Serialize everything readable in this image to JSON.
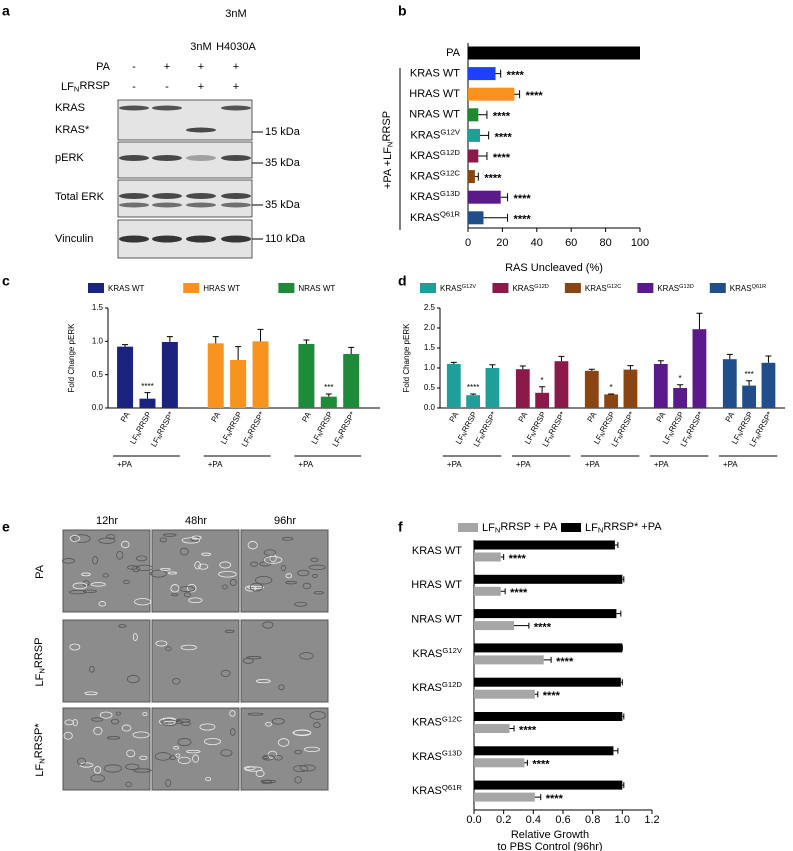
{
  "panel_labels": [
    "a",
    "b",
    "c",
    "d",
    "e",
    "f"
  ],
  "blot": {
    "lanes": [
      [
        "-",
        "-"
      ],
      [
        "+",
        "-"
      ],
      [
        "3nM",
        "+",
        "+"
      ],
      [
        "3nM",
        "H4030A",
        "+",
        "+"
      ]
    ],
    "row_labels": [
      "PA",
      "LFNRRSP"
    ],
    "lane_headers": [
      null,
      null,
      [
        "3nM"
      ],
      [
        "3nM",
        "H4030A"
      ]
    ],
    "treatments": [
      [
        "-",
        "+",
        "+",
        "+"
      ],
      [
        "-",
        "-",
        "+",
        "+"
      ]
    ],
    "proteins": [
      "KRAS",
      "KRAS*",
      "pERK",
      "Total ERK",
      "Vinculin"
    ],
    "markers": [
      "15 kDa",
      "35 kDa",
      "35 kDa",
      "110 kDa"
    ]
  },
  "micrographs": {
    "columns": [
      "12hr",
      "48hr",
      "96hr"
    ],
    "rows": [
      "PA",
      "LFNRRSP",
      "LFNRRSP*"
    ]
  },
  "chart_data": [
    {
      "type": "bar",
      "orientation": "horizontal",
      "group_label": "+PA +LFNRRSP",
      "categories": [
        "PA",
        "KRAS WT",
        "HRAS WT",
        "NRAS WT",
        "KRASG12V",
        "KRASG12D",
        "KRASG12C",
        "KRASG13D",
        "KRASQ61R"
      ],
      "values": [
        100,
        16,
        27,
        6,
        7,
        6,
        4,
        19,
        9
      ],
      "errors": [
        0,
        3,
        3,
        5,
        5,
        5,
        2,
        4,
        14
      ],
      "annotations": [
        null,
        "****",
        "****",
        "****",
        "****",
        "****",
        "****",
        "****",
        "****"
      ],
      "colors": [
        "#000000",
        "#1f3fff",
        "#f7931e",
        "#1a8a2a",
        "#1f9e9a",
        "#8b1a4a",
        "#8b4513",
        "#5a1a8a",
        "#1f4e8a"
      ],
      "xlim": [
        0,
        100
      ],
      "xticks": [
        0,
        20,
        40,
        60,
        80,
        100
      ],
      "xlabel": "RAS Uncleaved (%)"
    },
    {
      "type": "bar",
      "orientation": "vertical",
      "ylabel": "Fold Change pERK",
      "group_label": "+PA",
      "categories": [
        "PA",
        "LFNRRSP",
        "LFNRRSP*"
      ],
      "series": [
        {
          "name": "KRAS WT",
          "color": "#1a237e",
          "values": [
            0.92,
            0.14,
            0.99
          ],
          "errors": [
            0.03,
            0.09,
            0.08
          ],
          "annotations": [
            null,
            "****",
            null
          ]
        },
        {
          "name": "HRAS WT",
          "color": "#f7931e",
          "values": [
            0.97,
            0.72,
            1.0
          ],
          "errors": [
            0.1,
            0.2,
            0.18
          ],
          "annotations": [
            null,
            null,
            null
          ]
        },
        {
          "name": "NRAS WT",
          "color": "#1e8b3a",
          "values": [
            0.96,
            0.17,
            0.81
          ],
          "errors": [
            0.06,
            0.04,
            0.1
          ],
          "annotations": [
            null,
            "***",
            null
          ]
        }
      ],
      "ylim": [
        0,
        1.5
      ],
      "yticks": [
        {
          "value": 0,
          "label": "0.0"
        },
        0.5,
        {
          "value": 1,
          "label": "1.0"
        },
        1.5
      ]
    },
    {
      "type": "bar",
      "orientation": "vertical",
      "ylabel": "Fold Change pERK",
      "group_label": "+PA",
      "categories": [
        "PA",
        "LFNRRSP",
        "LFNRRSP*"
      ],
      "series": [
        {
          "name": "KRASG12V",
          "color": "#1f9e9a",
          "values": [
            1.1,
            0.32,
            1.0
          ],
          "errors": [
            0.04,
            0.03,
            0.08
          ],
          "annotations": [
            null,
            "****",
            null
          ]
        },
        {
          "name": "KRASG12D",
          "color": "#8b1a4a",
          "values": [
            0.97,
            0.38,
            1.17
          ],
          "errors": [
            0.08,
            0.15,
            0.12
          ],
          "annotations": [
            null,
            "*",
            null
          ]
        },
        {
          "name": "KRASG12C",
          "color": "#8b4513",
          "values": [
            0.93,
            0.34,
            0.96
          ],
          "errors": [
            0.04,
            0.01,
            0.1
          ],
          "annotations": [
            null,
            "*",
            null
          ]
        },
        {
          "name": "KRASG13D",
          "color": "#5a1a8a",
          "values": [
            1.1,
            0.5,
            1.97
          ],
          "errors": [
            0.08,
            0.08,
            0.4
          ],
          "annotations": [
            null,
            "*",
            null
          ]
        },
        {
          "name": "KRASQ61R",
          "color": "#1f4e8a",
          "values": [
            1.22,
            0.56,
            1.13
          ],
          "errors": [
            0.12,
            0.12,
            0.17
          ],
          "annotations": [
            null,
            "***",
            null
          ]
        }
      ],
      "ylim": [
        0,
        2.5
      ],
      "yticks": [
        {
          "value": 0,
          "label": "0.0"
        },
        0.5,
        {
          "value": 1,
          "label": "1.0"
        },
        1.5,
        {
          "value": 2,
          "label": "2.0"
        },
        2.5
      ]
    },
    {
      "type": "bar",
      "orientation": "horizontal",
      "categories": [
        "KRAS WT",
        "HRAS WT",
        "NRAS WT",
        "KRASG12V",
        "KRASG12D",
        "KRASG12C",
        "KRASG13D",
        "KRASQ61R"
      ],
      "series": [
        {
          "name": "LFNRRSP + PA",
          "color": "#a6a6a6",
          "values": [
            0.18,
            0.18,
            0.27,
            0.47,
            0.41,
            0.24,
            0.34,
            0.41
          ],
          "errors": [
            0.02,
            0.03,
            0.1,
            0.05,
            0.02,
            0.03,
            0.02,
            0.04
          ],
          "annotations": [
            "****",
            "****",
            "****",
            "****",
            "****",
            "****",
            "****",
            "****"
          ]
        },
        {
          "name": "LFNRRSP* +PA",
          "color": "#000000",
          "values": [
            0.95,
            1.0,
            0.96,
            1.0,
            0.99,
            1.0,
            0.94,
            1.0
          ],
          "errors": [
            0.02,
            0.01,
            0.03,
            0,
            0.01,
            0.01,
            0.03,
            0.01
          ]
        }
      ],
      "xlim": [
        0,
        1.2
      ],
      "xticks": [
        {
          "value": 0,
          "label": "0.0"
        },
        0.2,
        0.4,
        0.6,
        0.8,
        {
          "value": 1,
          "label": "1.0"
        },
        1.2
      ],
      "xlabel": [
        "Relative Growth",
        "to PBS Control (96hr)"
      ]
    }
  ]
}
